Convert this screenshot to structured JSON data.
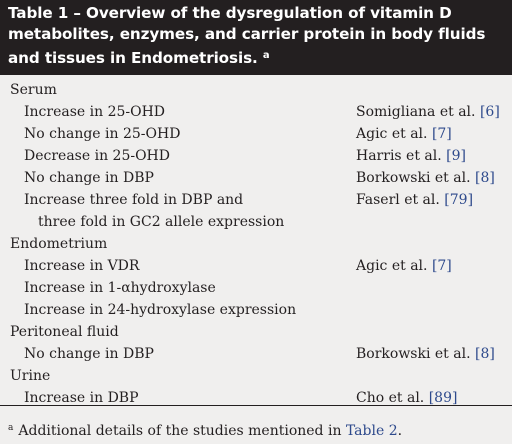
{
  "table": {
    "title": "Table 1 – Overview of the dysregulation of vitamin D metabolites, enzymes, and carrier protein in body fluids and tissues in Endometriosis.",
    "title_lines": [
      "Table 1 – Overview of the dysregulation of vitamin D",
      "metabolites, enzymes, and carrier protein in body fluids",
      "and tissues in Endometriosis."
    ],
    "title_footnote_mark": "a",
    "rows": [
      {
        "kind": "section",
        "label": "Serum",
        "author": "",
        "ref": ""
      },
      {
        "kind": "item",
        "label": "Increase in 25-OHD",
        "author": "Somigliana et al.",
        "ref": "[6]"
      },
      {
        "kind": "item",
        "label": "No change in 25-OHD",
        "author": "Agic et al.",
        "ref": "[7]"
      },
      {
        "kind": "item",
        "label": "Decrease in 25-OHD",
        "author": "Harris et al.",
        "ref": "[9]"
      },
      {
        "kind": "item",
        "label": "No change in DBP",
        "author": "Borkowski et al.",
        "ref": "[8]"
      },
      {
        "kind": "item",
        "label": "Increase three fold in DBP and",
        "author": "Faserl et al.",
        "ref": "[79]"
      },
      {
        "kind": "cont",
        "label": "three fold in GC2 allele expression",
        "author": "",
        "ref": ""
      },
      {
        "kind": "section",
        "label": "Endometrium",
        "author": "",
        "ref": ""
      },
      {
        "kind": "item",
        "label": "Increase in VDR",
        "author": "Agic et al.",
        "ref": "[7]"
      },
      {
        "kind": "item",
        "label": "Increase in 1-αhydroxylase",
        "author": "",
        "ref": ""
      },
      {
        "kind": "item",
        "label": "Increase in 24-hydroxylase expression",
        "author": "",
        "ref": ""
      },
      {
        "kind": "section",
        "label": "Peritoneal fluid",
        "author": "",
        "ref": ""
      },
      {
        "kind": "item",
        "label": "No change in DBP",
        "author": "Borkowski et al.",
        "ref": "[8]"
      },
      {
        "kind": "section",
        "label": "Urine",
        "author": "",
        "ref": ""
      },
      {
        "kind": "item",
        "label": "Increase in DBP",
        "author": "Cho et al.",
        "ref": "[89]"
      }
    ],
    "footnote": {
      "mark": "a",
      "text": "Additional details of the studies mentioned in",
      "link": "Table 2",
      "end": "."
    }
  }
}
